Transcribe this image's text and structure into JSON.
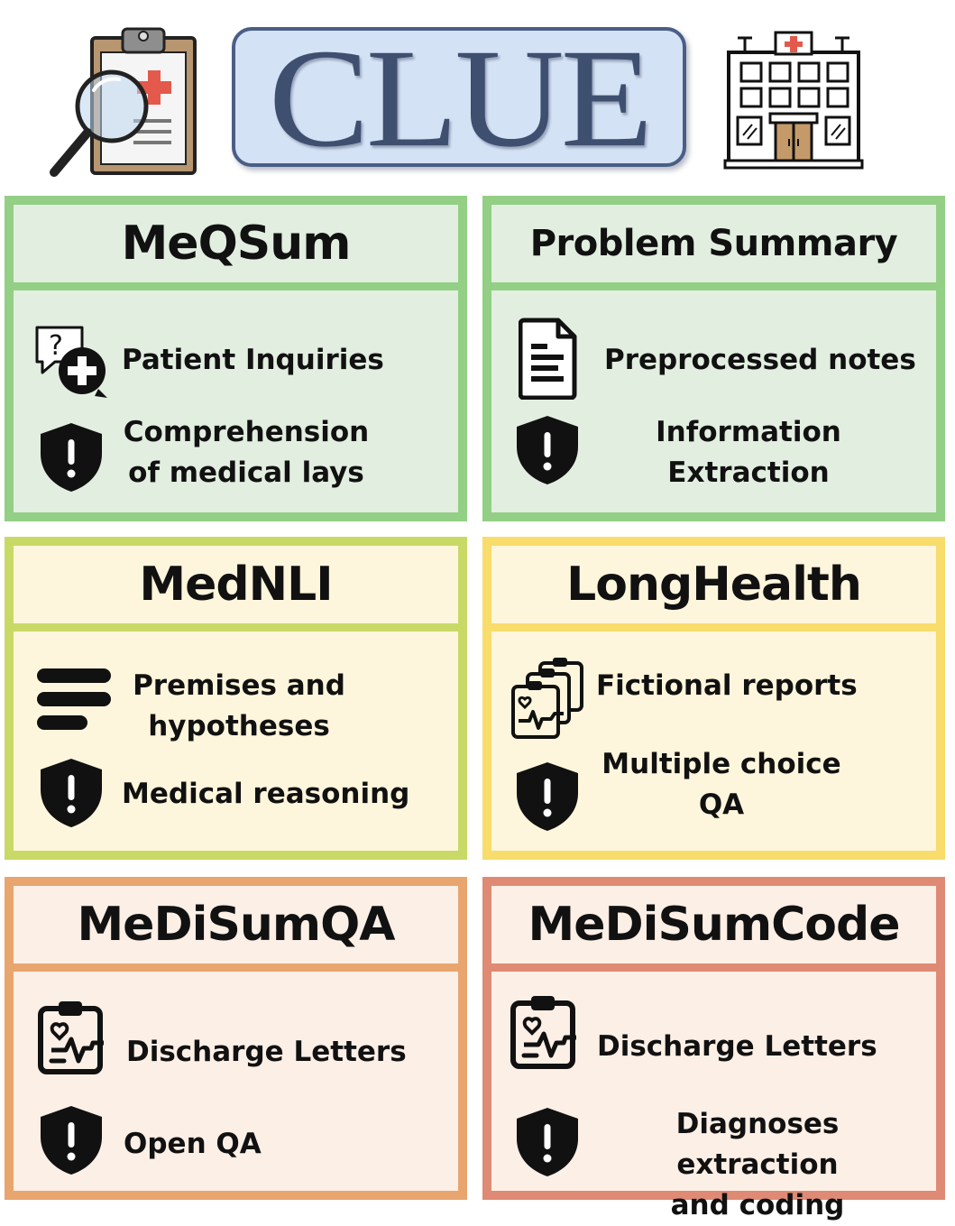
{
  "header": {
    "title": "CLUE",
    "left_icon": "clipboard-magnifier-icon",
    "right_icon": "hospital-building-icon"
  },
  "colors": {
    "title_box_fill": "#d4e2f5",
    "title_box_border": "#4a5e86",
    "green": "#93cf85",
    "lime": "#c8d966",
    "yellow": "#f8dc6c",
    "orange": "#e8a56e",
    "salmon": "#df8a74"
  },
  "cards": [
    {
      "title": "MeQSum",
      "data_icon": "question-bubble-plus-icon",
      "data_text": "Patient Inquiries",
      "task_icon": "shield-alert-icon",
      "task_line1": "Comprehension",
      "task_line2": "of medical lays"
    },
    {
      "title": "Problem Summary",
      "data_icon": "document-notes-icon",
      "data_text": "Preprocessed notes",
      "task_icon": "shield-alert-icon",
      "task_line1": "Information",
      "task_line2": "Extraction"
    },
    {
      "title": "MedNLI",
      "data_icon": "text-lines-icon",
      "data_line1": "Premises and",
      "data_line2": "hypotheses",
      "task_icon": "shield-alert-icon",
      "task_text": "Medical reasoning"
    },
    {
      "title": "LongHealth",
      "data_icon": "stacked-reports-icon",
      "data_text": "Fictional reports",
      "task_icon": "shield-alert-icon",
      "task_line1": "Multiple choice",
      "task_line2": "QA"
    },
    {
      "title": "MeDiSumQA",
      "data_icon": "medical-clipboard-icon",
      "data_text": "Discharge Letters",
      "task_icon": "shield-alert-icon",
      "task_text": "Open QA"
    },
    {
      "title": "MeDiSumCode",
      "data_icon": "medical-clipboard-icon",
      "data_text": "Discharge Letters",
      "task_icon": "shield-alert-icon",
      "task_line1": "Diagnoses extraction",
      "task_line2": "and coding"
    }
  ]
}
